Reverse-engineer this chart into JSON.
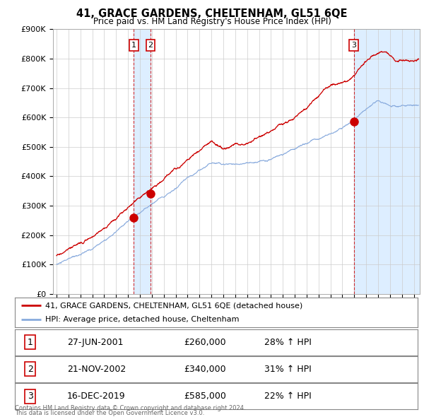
{
  "title": "41, GRACE GARDENS, CHELTENHAM, GL51 6QE",
  "subtitle": "Price paid vs. HM Land Registry's House Price Index (HPI)",
  "sale_dates_display": [
    "27-JUN-2001",
    "21-NOV-2002",
    "16-DEC-2019"
  ],
  "sale_prices": [
    260000,
    340000,
    585000
  ],
  "sale_pct_display": [
    "28% ↑ HPI",
    "31% ↑ HPI",
    "22% ↑ HPI"
  ],
  "sale_years": [
    2001.49,
    2002.89,
    2019.96
  ],
  "legend_line1": "41, GRACE GARDENS, CHELTENHAM, GL51 6QE (detached house)",
  "legend_line2": "HPI: Average price, detached house, Cheltenham",
  "table_rows": [
    [
      "1",
      "27-JUN-2001",
      "£260,000",
      "28% ↑ HPI"
    ],
    [
      "2",
      "21-NOV-2002",
      "£340,000",
      "31% ↑ HPI"
    ],
    [
      "3",
      "16-DEC-2019",
      "£585,000",
      "22% ↑ HPI"
    ]
  ],
  "footer1": "Contains HM Land Registry data © Crown copyright and database right 2024.",
  "footer2": "This data is licensed under the Open Government Licence v3.0.",
  "red_color": "#cc0000",
  "blue_color": "#88aadd",
  "shade_color": "#ddeeff",
  "bg_color": "#ffffff",
  "ylim": [
    0,
    900000
  ],
  "xlim_start": 1994.7,
  "xlim_end": 2025.5,
  "marker_y": 845000
}
